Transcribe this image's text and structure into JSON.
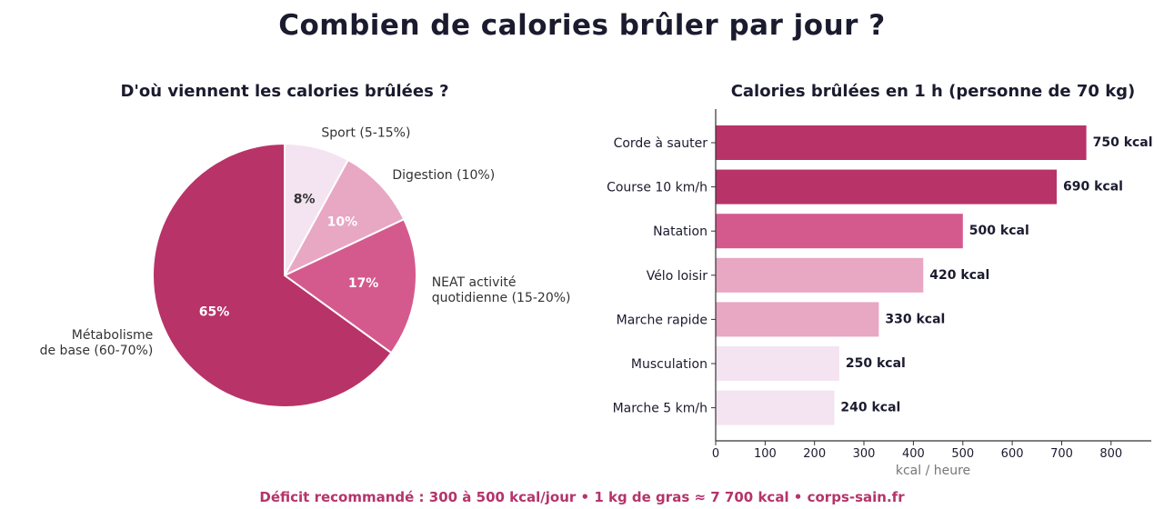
{
  "title": "Combien de calories brûler par jour ?",
  "footer": "Déficit recommandé : 300 à 500 kcal/jour  •  1 kg de gras ≈ 7 700 kcal  •  corps-sain.fr",
  "chart_data": [
    {
      "type": "pie",
      "title": "D'où viennent les calories brûlées ?",
      "slices": [
        {
          "label": "Sport (5-15%)",
          "label_lines": [
            "Sport (5-15%)"
          ],
          "value": 8,
          "pct_label": "8%",
          "color": "#f4e3f1",
          "text_color": "#333333"
        },
        {
          "label": "Digestion (10%)",
          "label_lines": [
            "Digestion (10%)"
          ],
          "value": 10,
          "pct_label": "10%",
          "color": "#e8a7c3",
          "text_color": "#ffffff"
        },
        {
          "label": "NEAT activité quotidienne (15-20%)",
          "label_lines": [
            "NEAT activité",
            "quotidienne (15-20%)"
          ],
          "value": 17,
          "pct_label": "17%",
          "color": "#d45a8e",
          "text_color": "#ffffff"
        },
        {
          "label": "Métabolisme de base (60-70%)",
          "label_lines": [
            "Métabolisme",
            "de base (60-70%)"
          ],
          "value": 65,
          "pct_label": "65%",
          "color": "#b83368",
          "text_color": "#ffffff"
        }
      ]
    },
    {
      "type": "bar",
      "orientation": "horizontal",
      "title": "Calories brûlées en 1 h (personne de 70 kg)",
      "xlabel": "kcal / heure",
      "xlim": [
        0,
        880
      ],
      "xticks": [
        0,
        100,
        200,
        300,
        400,
        500,
        600,
        700,
        800
      ],
      "categories": [
        "Corde à sauter",
        "Course 10 km/h",
        "Natation",
        "Vélo loisir",
        "Marche rapide",
        "Musculation",
        "Marche 5 km/h"
      ],
      "values": [
        750,
        690,
        500,
        420,
        330,
        250,
        240
      ],
      "value_labels": [
        "750 kcal",
        "690 kcal",
        "500 kcal",
        "420 kcal",
        "330 kcal",
        "250 kcal",
        "240 kcal"
      ],
      "colors": [
        "#b83368",
        "#b83368",
        "#d45a8e",
        "#e8a7c3",
        "#e8a7c3",
        "#f4e3f1",
        "#f4e3f1"
      ]
    }
  ]
}
